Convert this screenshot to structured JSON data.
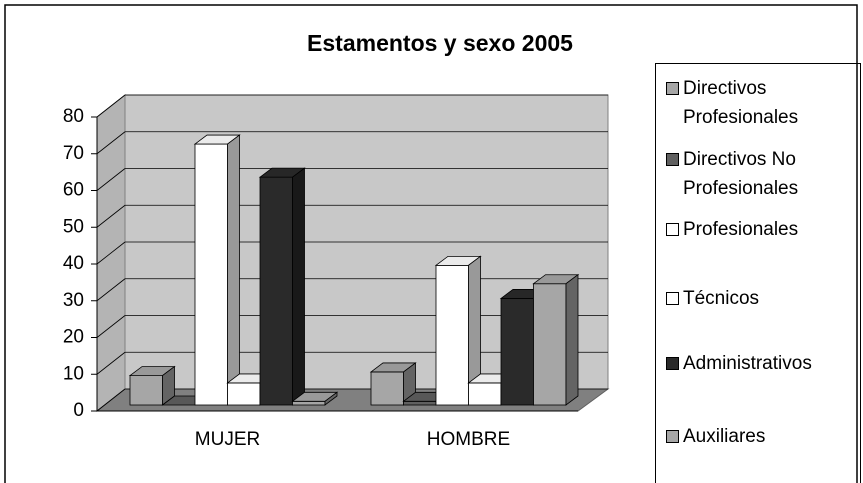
{
  "chart_data": {
    "type": "bar3d",
    "title": "Estamentos y sexo 2005",
    "categories": [
      "MUJER",
      "HOMBRE"
    ],
    "series": [
      {
        "name": "Directivos Profesionales",
        "color": "#a6a6a6",
        "values": [
          8,
          9
        ]
      },
      {
        "name": "Directivos No Profesionales",
        "color": "#606060",
        "values": [
          0,
          1
        ]
      },
      {
        "name": "Profesionales",
        "color": "#ffffff",
        "values": [
          71,
          38
        ]
      },
      {
        "name": "Técnicos",
        "color": "#ffffff",
        "values": [
          6,
          6
        ]
      },
      {
        "name": "Administrativos",
        "color": "#2a2a2a",
        "values": [
          62,
          29
        ]
      },
      {
        "name": "Auxiliares",
        "color": "#a6a6a6",
        "values": [
          1,
          33
        ]
      }
    ],
    "ylim": [
      0,
      80
    ],
    "yticks": [
      0,
      10,
      20,
      30,
      40,
      50,
      60,
      70,
      80
    ],
    "grid": true,
    "legend": "right"
  }
}
